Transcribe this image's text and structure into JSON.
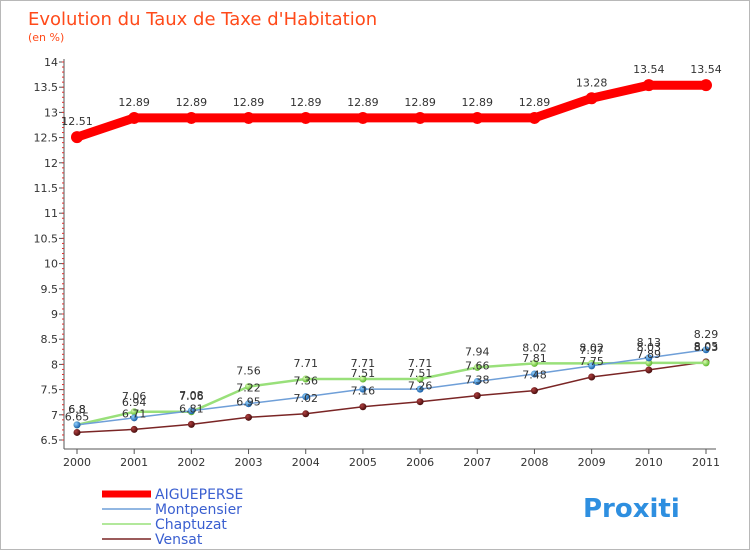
{
  "chart_data": {
    "type": "line",
    "title": "Evolution du Taux de Taxe d'Habitation",
    "subtitle": "(en %)",
    "categories": [
      "2000",
      "2001",
      "2002",
      "2003",
      "2004",
      "2005",
      "2006",
      "2007",
      "2008",
      "2009",
      "2010",
      "2011"
    ],
    "ylim": [
      6.5,
      14
    ],
    "yticks": [
      "6.5",
      "7",
      "7.5",
      "8",
      "8.5",
      "9",
      "9.5",
      "10",
      "10.5",
      "11",
      "11.5",
      "12",
      "12.5",
      "13",
      "13.5",
      "14"
    ],
    "grid": false,
    "legend_position": "bottom-left",
    "series": [
      {
        "name": "AIGUEPERSE",
        "color": "#ff0000",
        "values": [
          12.51,
          12.89,
          12.89,
          12.89,
          12.89,
          12.89,
          12.89,
          12.89,
          12.89,
          13.28,
          13.54,
          13.54
        ],
        "labels": [
          "12.51",
          "12.89",
          "12.89",
          "12.89",
          "12.89",
          "12.89",
          "12.89",
          "12.89",
          "12.89",
          "13.28",
          "13.54",
          "13.54"
        ]
      },
      {
        "name": "Montpensier",
        "color": "#6f9fd8",
        "values": [
          6.8,
          6.94,
          7.08,
          7.22,
          7.36,
          7.51,
          7.51,
          7.66,
          7.81,
          7.97,
          8.13,
          8.29
        ],
        "labels": [
          "6.8",
          "6.94",
          "7.08",
          "7.22",
          "7.36",
          "7.51",
          "7.51",
          "7.66",
          "7.81",
          "7.97",
          "8.13",
          "8.29"
        ]
      },
      {
        "name": "Chaptuzat",
        "color": "#99e07a",
        "values": [
          6.8,
          7.06,
          7.06,
          7.56,
          7.71,
          7.71,
          7.71,
          7.94,
          8.02,
          8.02,
          8.03,
          8.03
        ],
        "labels": [
          "6.8",
          "7.06",
          "7.06",
          "7.56",
          "7.71",
          "7.71",
          "7.71",
          "7.94",
          "8.02",
          "8.02",
          "8.03",
          "8.03"
        ]
      },
      {
        "name": "Vensat",
        "color": "#7a2525",
        "values": [
          6.65,
          6.71,
          6.81,
          6.95,
          7.02,
          7.16,
          7.26,
          7.38,
          7.48,
          7.75,
          7.89,
          8.05
        ],
        "labels": [
          "6.65",
          "6.71",
          "6.81",
          "6.95",
          "7.02",
          "7.16",
          "7.26",
          "7.38",
          "7.48",
          "7.75",
          "7.89",
          "8.05"
        ]
      }
    ]
  },
  "logo": {
    "text": "Proxiti"
  }
}
